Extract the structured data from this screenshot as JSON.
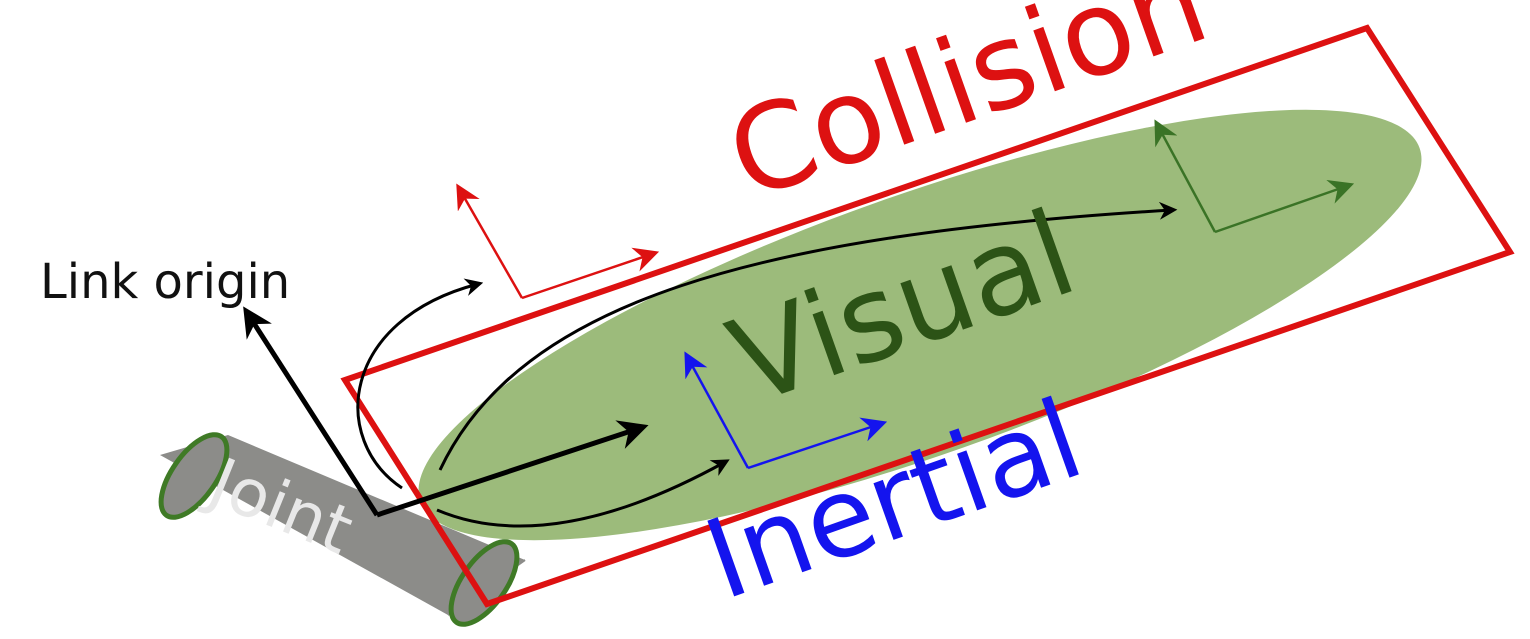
{
  "labels": {
    "link_origin": "Link origin",
    "collision": "Collision",
    "visual": "Visual",
    "inertial": "Inertial",
    "joint": "Joint"
  },
  "colors": {
    "collision": "#dd1111",
    "visual_fill": "#9cbb7b",
    "visual_frame": "#3a7326",
    "visual_text": "#2c5316",
    "inertial": "#1414ee",
    "joint_fill": "#8c8c89",
    "joint_edge": "#3f7a26",
    "black": "#000000"
  }
}
